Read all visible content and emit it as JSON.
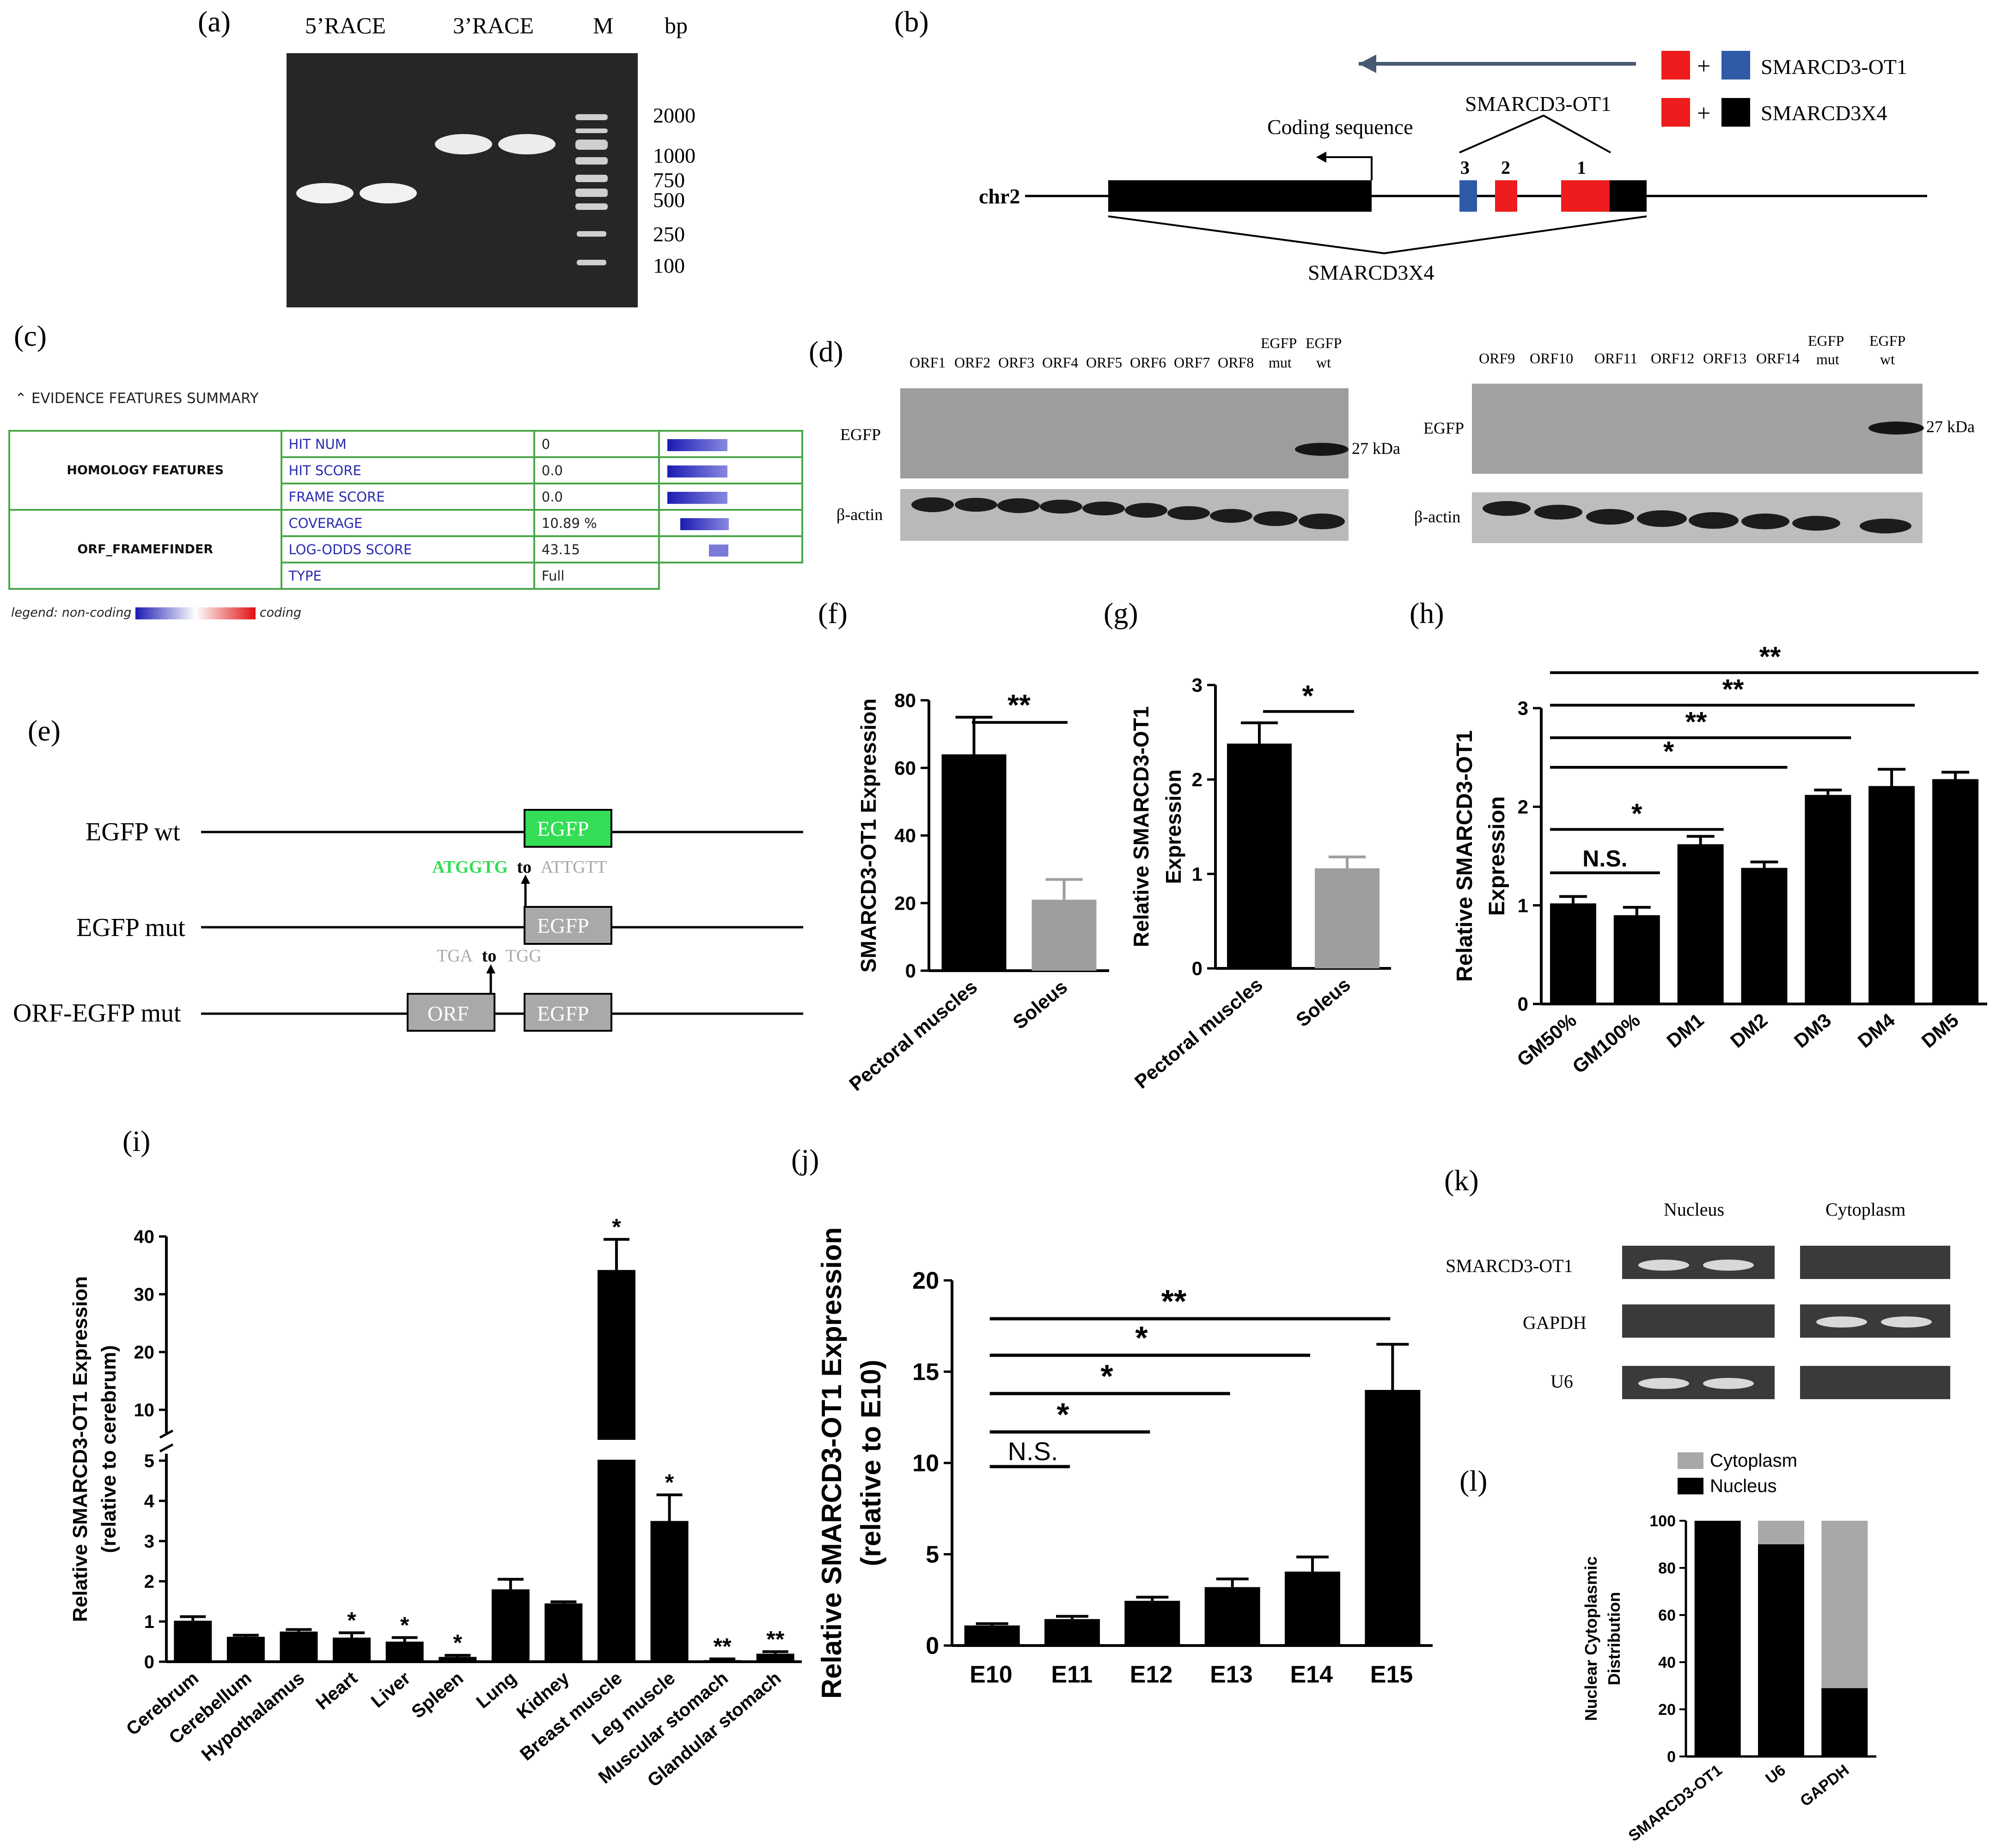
{
  "panel_labels": [
    "(a)",
    "(b)",
    "(c)",
    "(d)",
    "(e)",
    "(f)",
    "(g)",
    "(h)",
    "(i)",
    "(j)",
    "(k)",
    "(l)"
  ],
  "panel_a": {
    "lanes": [
      "5’RACE",
      "3’RACE",
      "M"
    ],
    "unit": "bp",
    "ladder": [
      "2000",
      "1000",
      "750",
      "500",
      "250",
      "100"
    ]
  },
  "panel_b": {
    "legend": [
      "SMARCD3-OT1",
      "SMARCD3X4"
    ],
    "chrom": "chr2",
    "coding_label": "Coding sequence",
    "ot1_label": "SMARCD3-OT1",
    "x4_label": "SMARCD3X4",
    "exons": [
      "3",
      "2",
      "1"
    ],
    "colors": {
      "red": "#ee1c1c",
      "blue": "#2e5aa6",
      "black": "#000000",
      "arrow": "#465a72"
    }
  },
  "panel_c": {
    "header": "⌃ EVIDENCE FEATURES SUMMARY",
    "groups": [
      {
        "name": "HOMOLOGY FEATURES",
        "rows": [
          {
            "key": "HIT NUM",
            "value": "0",
            "bar": 0.35
          },
          {
            "key": "HIT SCORE",
            "value": "0.0",
            "bar": 0.35
          },
          {
            "key": "FRAME SCORE",
            "value": "0.0",
            "bar": 0.35
          }
        ]
      },
      {
        "name": "ORF_FRAMEFINDER",
        "rows": [
          {
            "key": "COVERAGE",
            "value": "10.89 %",
            "bar": 0.28
          },
          {
            "key": "LOG-ODDS SCORE",
            "value": "43.15",
            "bar": 0.12
          },
          {
            "key": "TYPE",
            "value": "Full"
          }
        ]
      }
    ],
    "legend_left": "legend: non-coding",
    "legend_right": "coding"
  },
  "panel_d": {
    "left_lanes": [
      "ORF1",
      "ORF2",
      "ORF3",
      "ORF4",
      "ORF5",
      "ORF6",
      "ORF7",
      "ORF8"
    ],
    "right_lanes": [
      "ORF9",
      "ORF10",
      "ORF11",
      "ORF12",
      "ORF13",
      "ORF14"
    ],
    "egfp_mut": [
      "EGFP",
      "mut"
    ],
    "egfp_wt": [
      "EGFP",
      "wt"
    ],
    "row_egfp": "EGFP",
    "row_actin": "β-actin",
    "kda": "27 kDa"
  },
  "panel_e": {
    "constructs": [
      "EGFP wt",
      "EGFP mut",
      "ORF-EGFP mut"
    ],
    "box_egfp": "EGFP",
    "box_orf": "ORF",
    "mut1": {
      "from": "ATGGTG",
      "to_word": "to",
      "to": "ATTGTT"
    },
    "mut2": {
      "from": "TGA",
      "to_word": "to",
      "to": "TGG"
    },
    "colors": {
      "green": "#33dd55",
      "grey_box": "#a9a9a9",
      "grey_text": "#a8a8a8"
    }
  },
  "chart_data": [
    {
      "panel": "(f)",
      "type": "bar",
      "categories": [
        "Pectoral muscles",
        "Soleus"
      ],
      "values": [
        64,
        21
      ],
      "errors": [
        11,
        6
      ],
      "colors": [
        "#000000",
        "#9e9e9e"
      ],
      "ylabel": "SMARCD3-OT1 Expression",
      "ylim": [
        0,
        80
      ],
      "yticks": [
        "0",
        "20",
        "40",
        "60",
        "80"
      ],
      "significance": [
        "**"
      ]
    },
    {
      "panel": "(g)",
      "type": "bar",
      "categories": [
        "Pectoral muscles",
        "Soleus"
      ],
      "values": [
        2.38,
        1.06
      ],
      "errors": [
        0.22,
        0.12
      ],
      "colors": [
        "#000000",
        "#9e9e9e"
      ],
      "ylabel": [
        "Relative SMARCD3-OT1",
        "Expression"
      ],
      "ylim": [
        0,
        3
      ],
      "yticks": [
        "0",
        "1",
        "2",
        "3"
      ],
      "significance": [
        "*"
      ]
    },
    {
      "panel": "(h)",
      "type": "bar",
      "categories": [
        "GM50%",
        "GM100%",
        "DM1",
        "DM2",
        "DM3",
        "DM4",
        "DM5"
      ],
      "values": [
        1.02,
        0.9,
        1.62,
        1.38,
        2.12,
        2.21,
        2.28
      ],
      "errors": [
        0.07,
        0.08,
        0.08,
        0.06,
        0.05,
        0.17,
        0.07
      ],
      "ylabel": [
        "Relative SMARCD3-OT1",
        "Expression"
      ],
      "ylim": [
        0,
        3
      ],
      "yticks": [
        "0",
        "1",
        "2",
        "3"
      ],
      "significance": [
        "N.S.",
        "*",
        "*",
        "**",
        "**",
        "**"
      ]
    },
    {
      "panel": "(i)",
      "type": "bar",
      "categories": [
        "Cerebrum",
        "Cerebellum",
        "Hypothalamus",
        "Heart",
        "Liver",
        "Spleen",
        "Lung",
        "Kidney",
        "Breast muscle",
        "Leg muscle",
        "Muscular stomach",
        "Glandular stomach"
      ],
      "values": [
        1.02,
        0.62,
        0.75,
        0.6,
        0.5,
        0.12,
        1.8,
        1.45,
        34.2,
        3.5,
        0.04,
        0.2
      ],
      "errors": [
        0.1,
        0.04,
        0.05,
        0.12,
        0.1,
        0.04,
        0.25,
        0.04,
        5.3,
        0.65,
        0.03,
        0.05
      ],
      "labels": [
        "",
        "",
        "",
        "*",
        "*",
        "*",
        "",
        "",
        "*",
        "*",
        "**",
        "**"
      ],
      "ylabel": [
        "Relative SMARCD3-OT1 Expression",
        "(relative to cerebrum)"
      ],
      "axis_break": [
        5,
        10
      ],
      "yticks_low": [
        "0",
        "1",
        "2",
        "3",
        "4",
        "5"
      ],
      "yticks_high": [
        "10",
        "20",
        "30",
        "40"
      ]
    },
    {
      "panel": "(j)",
      "type": "bar",
      "categories": [
        "E10",
        "E11",
        "E12",
        "E13",
        "E14",
        "E15"
      ],
      "values": [
        1.1,
        1.45,
        2.45,
        3.2,
        4.05,
        14.0
      ],
      "errors": [
        0.1,
        0.15,
        0.2,
        0.45,
        0.8,
        2.5
      ],
      "ylabel": [
        "Relative SMARCD3-OT1 Expression",
        "(relative to E10)"
      ],
      "ylim": [
        0,
        20
      ],
      "yticks": [
        "0",
        "5",
        "10",
        "15",
        "20"
      ],
      "significance": [
        "N.S.",
        "*",
        "*",
        "*",
        "**"
      ]
    },
    {
      "panel": "(l)",
      "type": "bar",
      "categories": [
        "SMARCD3-OT1",
        "U6",
        "GAPDH"
      ],
      "series": [
        {
          "name": "Nucleus",
          "values": [
            100,
            90,
            29
          ],
          "color": "#000000"
        },
        {
          "name": "Cytoplasm",
          "values": [
            0,
            10,
            71
          ],
          "color": "#a8a8a8"
        }
      ],
      "ylabel": [
        "Nuclear Cytoplasmic",
        "Distribution"
      ],
      "ylim": [
        0,
        100
      ],
      "yticks": [
        "0",
        "20",
        "40",
        "60",
        "80",
        "100"
      ]
    }
  ],
  "panel_k": {
    "columns": [
      "Nucleus",
      "Cytoplasm"
    ],
    "rows": [
      "SMARCD3-OT1",
      "GAPDH",
      "U6"
    ]
  }
}
